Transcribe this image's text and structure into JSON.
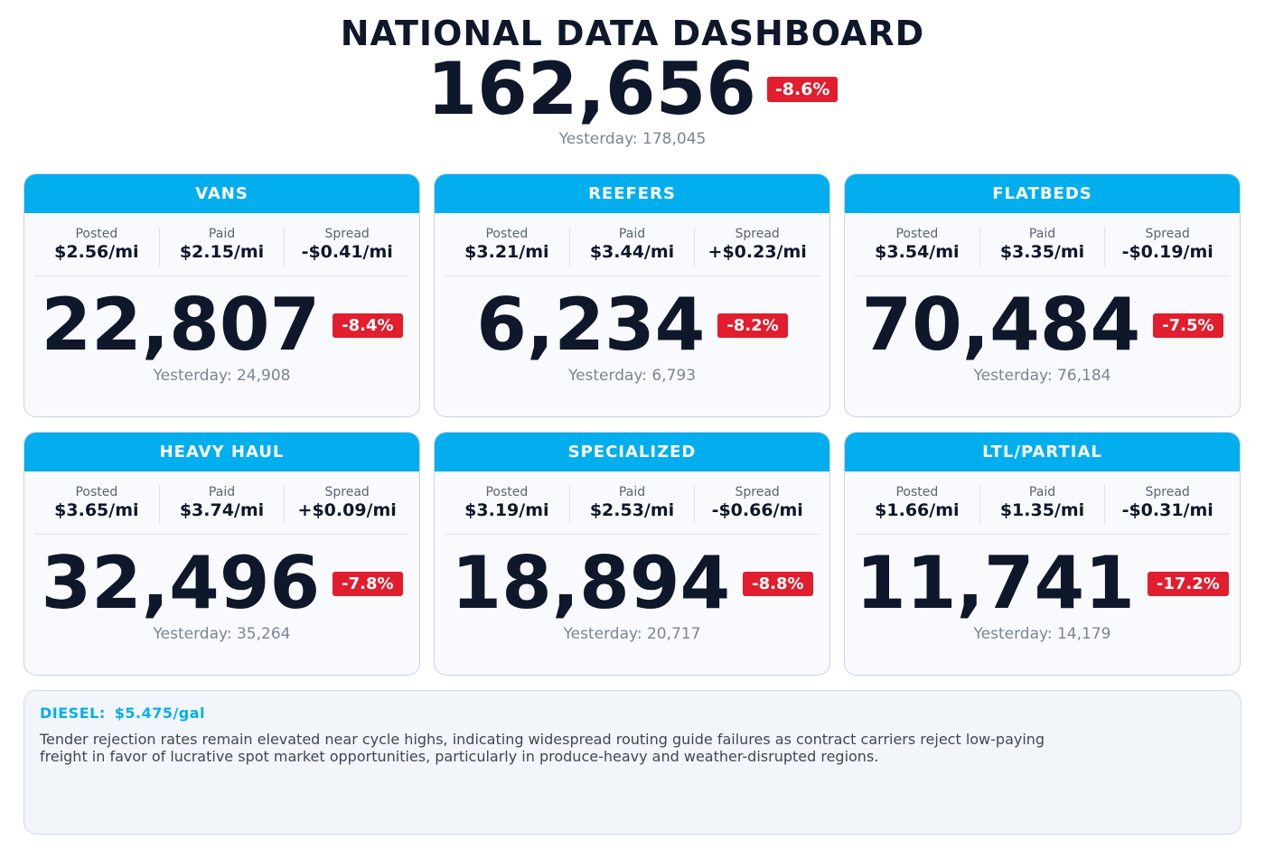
{
  "header": {
    "title": "NATIONAL DATA DASHBOARD",
    "total": "162,656",
    "total_change": "-8.6%",
    "total_yesterday": "Yesterday: 178,045"
  },
  "labels": {
    "posted": "Posted",
    "paid": "Paid",
    "spread": "Spread"
  },
  "cards": [
    {
      "name": "VANS",
      "posted": "$2.56/mi",
      "paid": "$2.15/mi",
      "spread": "-$0.41/mi",
      "value": "22,807",
      "change": "-8.4%",
      "yesterday": "Yesterday: 24,908"
    },
    {
      "name": "REEFERS",
      "posted": "$3.21/mi",
      "paid": "$3.44/mi",
      "spread": "+$0.23/mi",
      "value": "6,234",
      "change": "-8.2%",
      "yesterday": "Yesterday: 6,793"
    },
    {
      "name": "FLATBEDS",
      "posted": "$3.54/mi",
      "paid": "$3.35/mi",
      "spread": "-$0.19/mi",
      "value": "70,484",
      "change": "-7.5%",
      "yesterday": "Yesterday: 76,184"
    },
    {
      "name": "HEAVY HAUL",
      "posted": "$3.65/mi",
      "paid": "$3.74/mi",
      "spread": "+$0.09/mi",
      "value": "32,496",
      "change": "-7.8%",
      "yesterday": "Yesterday: 35,264"
    },
    {
      "name": "SPECIALIZED",
      "posted": "$3.19/mi",
      "paid": "$2.53/mi",
      "spread": "-$0.66/mi",
      "value": "18,894",
      "change": "-8.8%",
      "yesterday": "Yesterday: 20,717"
    },
    {
      "name": "LTL/PARTIAL",
      "posted": "$1.66/mi",
      "paid": "$1.35/mi",
      "spread": "-$0.31/mi",
      "value": "11,741",
      "change": "-17.2%",
      "yesterday": "Yesterday: 14,179"
    }
  ],
  "note": {
    "diesel_label": "DIESEL:",
    "diesel_value": "$5.475/gal",
    "text": "Tender rejection rates remain elevated near cycle highs, indicating widespread routing guide failures as contract carriers reject low-paying freight in favor of lucrative spot market opportunities, particularly in produce-heavy and weather-disrupted regions."
  },
  "colors": {
    "accent": "#03aeef",
    "negative": "#e11d2e",
    "text": "#0f172a",
    "muted": "#7b8594"
  }
}
